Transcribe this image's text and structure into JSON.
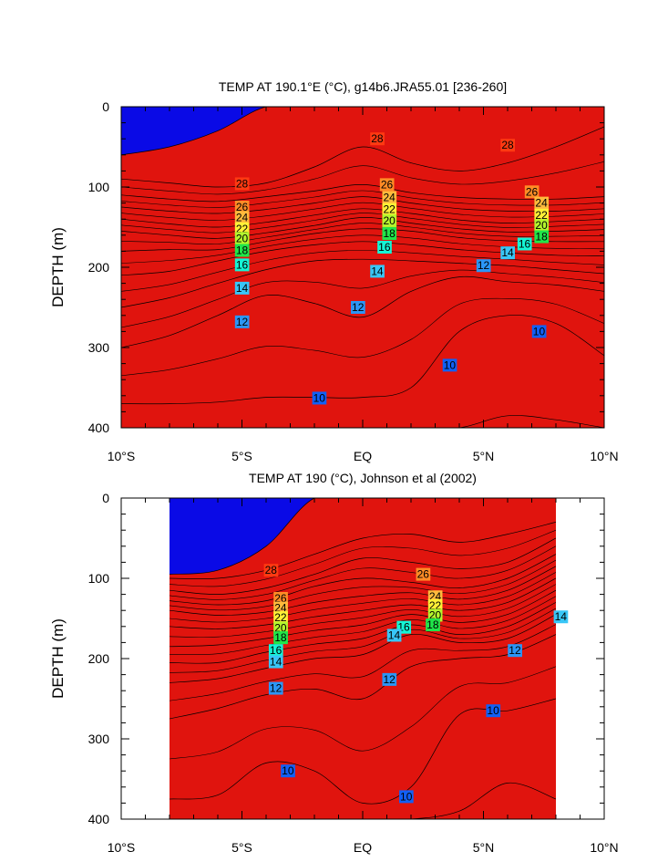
{
  "chart_data": [
    {
      "type": "contour",
      "title": "TEMP AT 190.1°E (°C), g14b6.JRA55.01 [236-260]",
      "ylabel": "DEPTH (m)",
      "xlabel": "",
      "xlim": [
        -10,
        10
      ],
      "ylim": [
        0,
        400
      ],
      "y_inverted": true,
      "x_ticks": [
        {
          "value": -10,
          "label": "10°S"
        },
        {
          "value": -5,
          "label": "5°S"
        },
        {
          "value": 0,
          "label": "EQ"
        },
        {
          "value": 5,
          "label": "5°N"
        },
        {
          "value": 10,
          "label": "10°N"
        }
      ],
      "y_ticks": [
        0,
        100,
        200,
        300,
        400
      ],
      "data_extent": [
        -10,
        10
      ],
      "contour_levels": [
        8,
        9,
        10,
        11,
        12,
        13,
        14,
        15,
        16,
        17,
        18,
        19,
        20,
        21,
        22,
        23,
        24,
        25,
        26,
        27,
        28,
        29
      ],
      "isotherm_depths": {
        "lat": [
          -10,
          -8,
          -6,
          -4,
          -2,
          0,
          2,
          4,
          6,
          8,
          10
        ],
        "levels": {
          "29": [
            60,
            50,
            30,
            0,
            0,
            0,
            0,
            0,
            0,
            0,
            0
          ],
          "28": [
            90,
            95,
            100,
            95,
            75,
            50,
            70,
            80,
            70,
            50,
            25
          ],
          "26": [
            110,
            115,
            118,
            112,
            105,
            97,
            107,
            113,
            115,
            115,
            112
          ],
          "24": [
            125,
            130,
            133,
            128,
            120,
            112,
            120,
            127,
            130,
            130,
            127
          ],
          "22": [
            140,
            146,
            150,
            144,
            135,
            127,
            133,
            141,
            145,
            143,
            140
          ],
          "20": [
            155,
            160,
            164,
            157,
            148,
            138,
            145,
            152,
            156,
            155,
            153
          ],
          "18": [
            180,
            178,
            178,
            168,
            158,
            152,
            155,
            163,
            167,
            168,
            168
          ],
          "16": [
            210,
            205,
            192,
            180,
            172,
            168,
            172,
            178,
            182,
            185,
            186
          ],
          "14": [
            250,
            238,
            220,
            203,
            192,
            190,
            192,
            195,
            198,
            203,
            208
          ],
          "12": [
            300,
            285,
            260,
            235,
            245,
            262,
            230,
            212,
            218,
            222,
            230
          ],
          "10": [
            370,
            370,
            368,
            362,
            362,
            362,
            350,
            280,
            260,
            270,
            310
          ],
          "9": [
            400,
            400,
            400,
            400,
            400,
            400,
            400,
            400,
            385,
            390,
            400
          ]
        }
      },
      "labels": [
        {
          "text": "28",
          "lat": -5,
          "depth": 96
        },
        {
          "text": "28",
          "lat": 0.6,
          "depth": 40
        },
        {
          "text": "28",
          "lat": 6,
          "depth": 48
        },
        {
          "text": "26",
          "lat": -5,
          "depth": 125
        },
        {
          "text": "26",
          "lat": 1,
          "depth": 97
        },
        {
          "text": "26",
          "lat": 7,
          "depth": 106
        },
        {
          "text": "24",
          "lat": -5,
          "depth": 138
        },
        {
          "text": "24",
          "lat": 1.1,
          "depth": 113
        },
        {
          "text": "24",
          "lat": 7.4,
          "depth": 120
        },
        {
          "text": "22",
          "lat": -5,
          "depth": 152
        },
        {
          "text": "22",
          "lat": 1.1,
          "depth": 128
        },
        {
          "text": "22",
          "lat": 7.4,
          "depth": 135
        },
        {
          "text": "20",
          "lat": -5,
          "depth": 164
        },
        {
          "text": "20",
          "lat": 1.1,
          "depth": 142
        },
        {
          "text": "20",
          "lat": 7.4,
          "depth": 148
        },
        {
          "text": "18",
          "lat": -5,
          "depth": 179
        },
        {
          "text": "18",
          "lat": 1.1,
          "depth": 158
        },
        {
          "text": "18",
          "lat": 7.4,
          "depth": 162
        },
        {
          "text": "16",
          "lat": -5,
          "depth": 197
        },
        {
          "text": "16",
          "lat": 0.9,
          "depth": 175
        },
        {
          "text": "16",
          "lat": 6.7,
          "depth": 171
        },
        {
          "text": "14",
          "lat": -5,
          "depth": 226
        },
        {
          "text": "14",
          "lat": 0.6,
          "depth": 205
        },
        {
          "text": "14",
          "lat": 6,
          "depth": 182
        },
        {
          "text": "12",
          "lat": -5,
          "depth": 268
        },
        {
          "text": "12",
          "lat": -0.2,
          "depth": 250
        },
        {
          "text": "12",
          "lat": 5,
          "depth": 198
        },
        {
          "text": "10",
          "lat": -1.8,
          "depth": 363
        },
        {
          "text": "10",
          "lat": 3.6,
          "depth": 322
        },
        {
          "text": "10",
          "lat": 7.3,
          "depth": 280
        }
      ]
    },
    {
      "type": "contour",
      "title": "TEMP AT 190 (°C), Johnson et al (2002)",
      "ylabel": "DEPTH (m)",
      "xlabel": "",
      "xlim": [
        -10,
        10
      ],
      "ylim": [
        0,
        400
      ],
      "y_inverted": true,
      "x_ticks": [
        {
          "value": -10,
          "label": "10°S"
        },
        {
          "value": -5,
          "label": "5°S"
        },
        {
          "value": 0,
          "label": "EQ"
        },
        {
          "value": 5,
          "label": "5°N"
        },
        {
          "value": 10,
          "label": "10°N"
        }
      ],
      "y_ticks": [
        0,
        100,
        200,
        300,
        400
      ],
      "data_extent": [
        -8,
        8
      ],
      "contour_levels": [
        8,
        9,
        10,
        11,
        12,
        13,
        14,
        15,
        16,
        17,
        18,
        19,
        20,
        21,
        22,
        23,
        24,
        25,
        26,
        27,
        28,
        29
      ],
      "isotherm_depths": {
        "lat": [
          -8,
          -6,
          -4,
          -2,
          0,
          2,
          4,
          6,
          8
        ],
        "levels": {
          "29": [
            95,
            90,
            60,
            0,
            0,
            0,
            0,
            0,
            0
          ],
          "28": [
            100,
            100,
            90,
            70,
            50,
            45,
            55,
            45,
            30
          ],
          "26": [
            115,
            120,
            112,
            95,
            75,
            80,
            88,
            80,
            50
          ],
          "24": [
            128,
            133,
            128,
            110,
            100,
            105,
            112,
            100,
            70
          ],
          "22": [
            140,
            146,
            142,
            130,
            122,
            118,
            126,
            115,
            85
          ],
          "20": [
            160,
            163,
            158,
            148,
            140,
            133,
            140,
            130,
            100
          ],
          "18": [
            185,
            183,
            175,
            165,
            158,
            145,
            155,
            145,
            115
          ],
          "16": [
            205,
            205,
            192,
            182,
            175,
            158,
            170,
            160,
            130
          ],
          "14": [
            230,
            225,
            212,
            200,
            195,
            170,
            180,
            175,
            145
          ],
          "12": [
            275,
            262,
            245,
            238,
            250,
            210,
            200,
            195,
            170
          ],
          "10": [
            375,
            370,
            330,
            340,
            380,
            360,
            270,
            265,
            250
          ],
          "9": [
            400,
            400,
            400,
            400,
            400,
            400,
            390,
            355,
            375
          ]
        }
      },
      "labels": [
        {
          "text": "28",
          "lat": -3.8,
          "depth": 90
        },
        {
          "text": "26",
          "lat": -3.4,
          "depth": 125
        },
        {
          "text": "26",
          "lat": 2.5,
          "depth": 95
        },
        {
          "text": "24",
          "lat": -3.4,
          "depth": 137
        },
        {
          "text": "24",
          "lat": 3,
          "depth": 123
        },
        {
          "text": "22",
          "lat": -3.4,
          "depth": 149
        },
        {
          "text": "22",
          "lat": 3,
          "depth": 134
        },
        {
          "text": "20",
          "lat": -3.4,
          "depth": 162
        },
        {
          "text": "20",
          "lat": 3,
          "depth": 146
        },
        {
          "text": "18",
          "lat": -3.4,
          "depth": 174
        },
        {
          "text": "18",
          "lat": 2.9,
          "depth": 158
        },
        {
          "text": "16",
          "lat": -3.6,
          "depth": 190
        },
        {
          "text": "16",
          "lat": 1.7,
          "depth": 161
        },
        {
          "text": "14",
          "lat": -3.6,
          "depth": 204
        },
        {
          "text": "14",
          "lat": 1.3,
          "depth": 171
        },
        {
          "text": "14",
          "lat": 8.2,
          "depth": 148
        },
        {
          "text": "12",
          "lat": -3.6,
          "depth": 237
        },
        {
          "text": "12",
          "lat": 1.1,
          "depth": 226
        },
        {
          "text": "12",
          "lat": 6.3,
          "depth": 190
        },
        {
          "text": "10",
          "lat": -3.1,
          "depth": 340
        },
        {
          "text": "10",
          "lat": 1.8,
          "depth": 372
        },
        {
          "text": "10",
          "lat": 5.4,
          "depth": 265
        }
      ]
    }
  ],
  "colors": {
    "8": "#0a0ae6",
    "9": "#0a42f0",
    "10": "#1260f5",
    "11": "#1f7cf7",
    "12": "#2b96f7",
    "13": "#32acf7",
    "14": "#38c6f7",
    "15": "#1fe0ef",
    "16": "#14f5d5",
    "17": "#14f099",
    "18": "#20e64a",
    "19": "#66ee33",
    "20": "#b4f52d",
    "21": "#eef52a",
    "22": "#fff036",
    "23": "#ffd23a",
    "24": "#ffba3c",
    "25": "#ffa538",
    "26": "#ff8c26",
    "27": "#ff6a1b",
    "28": "#ff3a12",
    "29": "#e0140e"
  }
}
